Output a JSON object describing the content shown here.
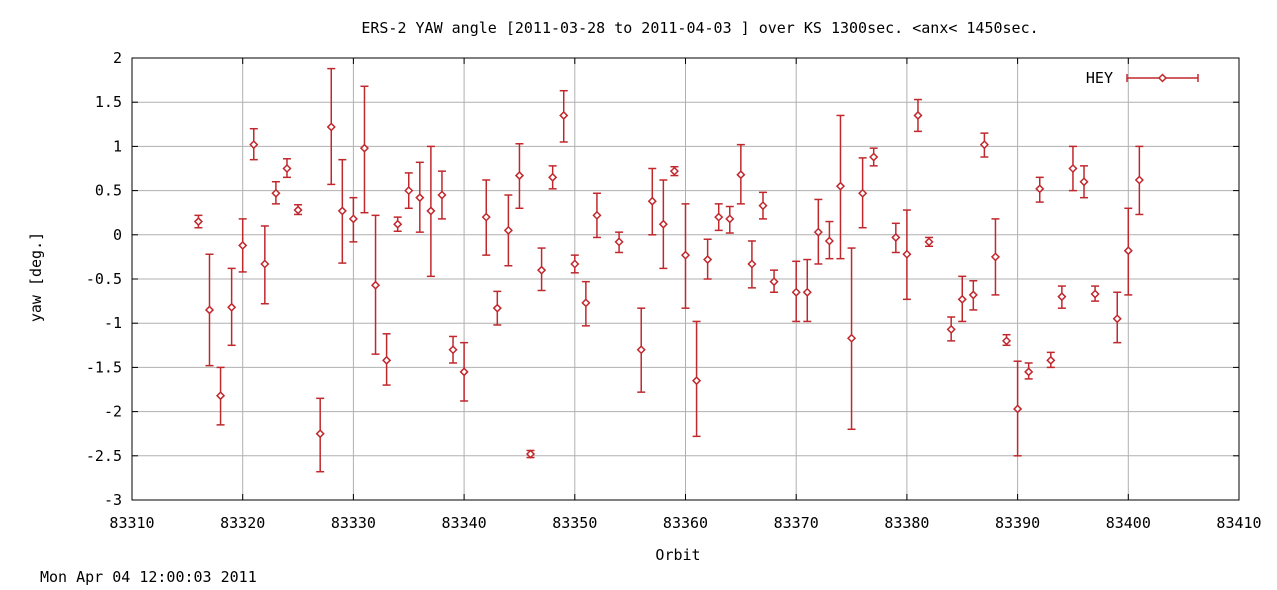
{
  "chart_data": {
    "type": "scatter",
    "title": "ERS-2 YAW angle [2011-03-28 to 2011-04-03 ] over KS 1300sec. <anx< 1450sec.",
    "xlabel": "Orbit",
    "ylabel": "yaw [deg.]",
    "xlim": [
      83310,
      83410
    ],
    "ylim": [
      -3,
      2
    ],
    "x_ticks": [
      83310,
      83320,
      83330,
      83340,
      83350,
      83360,
      83370,
      83380,
      83390,
      83400,
      83410
    ],
    "y_ticks": [
      -3,
      -2.5,
      -2,
      -1.5,
      -1,
      -0.5,
      0,
      0.5,
      1,
      1.5,
      2
    ],
    "x_tick_labels": [
      "83310",
      "83320",
      "83330",
      "83340",
      "83350",
      "83360",
      "83370",
      "83380",
      "83390",
      "83400",
      "83410"
    ],
    "y_tick_labels": [
      "-3",
      "-2.5",
      "-2",
      "-1.5",
      "-1",
      "-0.5",
      "0",
      "0.5",
      "1",
      "1.5",
      "2"
    ],
    "grid": true,
    "legend_position": "top-right",
    "series": [
      {
        "name": "HEY",
        "color": "#c0282d",
        "style": "points-with-errorbars",
        "points": [
          {
            "x": 83316,
            "y": 0.15,
            "ylow": 0.08,
            "yhigh": 0.22
          },
          {
            "x": 83317,
            "y": -0.85,
            "ylow": -1.48,
            "yhigh": -0.22
          },
          {
            "x": 83318,
            "y": -1.82,
            "ylow": -2.15,
            "yhigh": -1.5
          },
          {
            "x": 83319,
            "y": -0.82,
            "ylow": -1.25,
            "yhigh": -0.38
          },
          {
            "x": 83320,
            "y": -0.12,
            "ylow": -0.42,
            "yhigh": 0.18
          },
          {
            "x": 83321,
            "y": 1.02,
            "ylow": 0.85,
            "yhigh": 1.2
          },
          {
            "x": 83322,
            "y": -0.33,
            "ylow": -0.78,
            "yhigh": 0.1
          },
          {
            "x": 83323,
            "y": 0.47,
            "ylow": 0.35,
            "yhigh": 0.6
          },
          {
            "x": 83324,
            "y": 0.75,
            "ylow": 0.65,
            "yhigh": 0.86
          },
          {
            "x": 83325,
            "y": 0.28,
            "ylow": 0.23,
            "yhigh": 0.34
          },
          {
            "x": 83327,
            "y": -2.25,
            "ylow": -2.68,
            "yhigh": -1.85
          },
          {
            "x": 83328,
            "y": 1.22,
            "ylow": 0.57,
            "yhigh": 1.88
          },
          {
            "x": 83329,
            "y": 0.27,
            "ylow": -0.32,
            "yhigh": 0.85
          },
          {
            "x": 83330,
            "y": 0.18,
            "ylow": -0.08,
            "yhigh": 0.42
          },
          {
            "x": 83331,
            "y": 0.98,
            "ylow": 0.25,
            "yhigh": 1.68
          },
          {
            "x": 83332,
            "y": -0.57,
            "ylow": -1.35,
            "yhigh": 0.22
          },
          {
            "x": 83333,
            "y": -1.42,
            "ylow": -1.7,
            "yhigh": -1.12
          },
          {
            "x": 83334,
            "y": 0.12,
            "ylow": 0.04,
            "yhigh": 0.2
          },
          {
            "x": 83335,
            "y": 0.5,
            "ylow": 0.3,
            "yhigh": 0.7
          },
          {
            "x": 83336,
            "y": 0.42,
            "ylow": 0.03,
            "yhigh": 0.82
          },
          {
            "x": 83337,
            "y": 0.27,
            "ylow": -0.47,
            "yhigh": 1.0
          },
          {
            "x": 83338,
            "y": 0.45,
            "ylow": 0.18,
            "yhigh": 0.72
          },
          {
            "x": 83339,
            "y": -1.3,
            "ylow": -1.45,
            "yhigh": -1.15
          },
          {
            "x": 83340,
            "y": -1.55,
            "ylow": -1.88,
            "yhigh": -1.22
          },
          {
            "x": 83342,
            "y": 0.2,
            "ylow": -0.23,
            "yhigh": 0.62
          },
          {
            "x": 83343,
            "y": -0.83,
            "ylow": -1.02,
            "yhigh": -0.64
          },
          {
            "x": 83344,
            "y": 0.05,
            "ylow": -0.35,
            "yhigh": 0.45
          },
          {
            "x": 83345,
            "y": 0.67,
            "ylow": 0.3,
            "yhigh": 1.03
          },
          {
            "x": 83346,
            "y": -2.48,
            "ylow": -2.52,
            "yhigh": -2.44
          },
          {
            "x": 83347,
            "y": -0.4,
            "ylow": -0.63,
            "yhigh": -0.15
          },
          {
            "x": 83348,
            "y": 0.65,
            "ylow": 0.52,
            "yhigh": 0.78
          },
          {
            "x": 83349,
            "y": 1.35,
            "ylow": 1.05,
            "yhigh": 1.63
          },
          {
            "x": 83350,
            "y": -0.33,
            "ylow": -0.43,
            "yhigh": -0.23
          },
          {
            "x": 83351,
            "y": -0.77,
            "ylow": -1.03,
            "yhigh": -0.53
          },
          {
            "x": 83352,
            "y": 0.22,
            "ylow": -0.03,
            "yhigh": 0.47
          },
          {
            "x": 83354,
            "y": -0.08,
            "ylow": -0.2,
            "yhigh": 0.03
          },
          {
            "x": 83356,
            "y": -1.3,
            "ylow": -1.78,
            "yhigh": -0.83
          },
          {
            "x": 83357,
            "y": 0.38,
            "ylow": 0.0,
            "yhigh": 0.75
          },
          {
            "x": 83358,
            "y": 0.12,
            "ylow": -0.38,
            "yhigh": 0.62
          },
          {
            "x": 83359,
            "y": 0.72,
            "ylow": 0.67,
            "yhigh": 0.77
          },
          {
            "x": 83360,
            "y": -0.23,
            "ylow": -0.83,
            "yhigh": 0.35
          },
          {
            "x": 83361,
            "y": -1.65,
            "ylow": -2.28,
            "yhigh": -0.98
          },
          {
            "x": 83362,
            "y": -0.28,
            "ylow": -0.5,
            "yhigh": -0.05
          },
          {
            "x": 83363,
            "y": 0.2,
            "ylow": 0.05,
            "yhigh": 0.35
          },
          {
            "x": 83364,
            "y": 0.18,
            "ylow": 0.02,
            "yhigh": 0.32
          },
          {
            "x": 83365,
            "y": 0.68,
            "ylow": 0.35,
            "yhigh": 1.02
          },
          {
            "x": 83366,
            "y": -0.33,
            "ylow": -0.6,
            "yhigh": -0.07
          },
          {
            "x": 83367,
            "y": 0.33,
            "ylow": 0.18,
            "yhigh": 0.48
          },
          {
            "x": 83368,
            "y": -0.53,
            "ylow": -0.65,
            "yhigh": -0.4
          },
          {
            "x": 83370,
            "y": -0.65,
            "ylow": -0.98,
            "yhigh": -0.3
          },
          {
            "x": 83371,
            "y": -0.65,
            "ylow": -0.98,
            "yhigh": -0.28
          },
          {
            "x": 83372,
            "y": 0.03,
            "ylow": -0.33,
            "yhigh": 0.4
          },
          {
            "x": 83373,
            "y": -0.07,
            "ylow": -0.27,
            "yhigh": 0.15
          },
          {
            "x": 83374,
            "y": 0.55,
            "ylow": -0.27,
            "yhigh": 1.35
          },
          {
            "x": 83375,
            "y": -1.17,
            "ylow": -2.2,
            "yhigh": -0.15
          },
          {
            "x": 83376,
            "y": 0.47,
            "ylow": 0.08,
            "yhigh": 0.87
          },
          {
            "x": 83377,
            "y": 0.88,
            "ylow": 0.78,
            "yhigh": 0.98
          },
          {
            "x": 83379,
            "y": -0.03,
            "ylow": -0.2,
            "yhigh": 0.13
          },
          {
            "x": 83380,
            "y": -0.22,
            "ylow": -0.73,
            "yhigh": 0.28
          },
          {
            "x": 83381,
            "y": 1.35,
            "ylow": 1.17,
            "yhigh": 1.53
          },
          {
            "x": 83382,
            "y": -0.08,
            "ylow": -0.13,
            "yhigh": -0.03
          },
          {
            "x": 83384,
            "y": -1.07,
            "ylow": -1.2,
            "yhigh": -0.93
          },
          {
            "x": 83385,
            "y": -0.73,
            "ylow": -0.98,
            "yhigh": -0.47
          },
          {
            "x": 83386,
            "y": -0.68,
            "ylow": -0.85,
            "yhigh": -0.52
          },
          {
            "x": 83387,
            "y": 1.02,
            "ylow": 0.88,
            "yhigh": 1.15
          },
          {
            "x": 83388,
            "y": -0.25,
            "ylow": -0.68,
            "yhigh": 0.18
          },
          {
            "x": 83389,
            "y": -1.2,
            "ylow": -1.25,
            "yhigh": -1.13
          },
          {
            "x": 83390,
            "y": -1.97,
            "ylow": -2.5,
            "yhigh": -1.43
          },
          {
            "x": 83391,
            "y": -1.55,
            "ylow": -1.63,
            "yhigh": -1.45
          },
          {
            "x": 83392,
            "y": 0.52,
            "ylow": 0.37,
            "yhigh": 0.65
          },
          {
            "x": 83393,
            "y": -1.42,
            "ylow": -1.5,
            "yhigh": -1.33
          },
          {
            "x": 83394,
            "y": -0.7,
            "ylow": -0.83,
            "yhigh": -0.58
          },
          {
            "x": 83395,
            "y": 0.75,
            "ylow": 0.5,
            "yhigh": 1.0
          },
          {
            "x": 83396,
            "y": 0.6,
            "ylow": 0.42,
            "yhigh": 0.78
          },
          {
            "x": 83397,
            "y": -0.67,
            "ylow": -0.75,
            "yhigh": -0.58
          },
          {
            "x": 83399,
            "y": -0.95,
            "ylow": -1.22,
            "yhigh": -0.65
          },
          {
            "x": 83400,
            "y": -0.18,
            "ylow": -0.68,
            "yhigh": 0.3
          },
          {
            "x": 83401,
            "y": 0.62,
            "ylow": 0.23,
            "yhigh": 1.0
          }
        ]
      }
    ]
  },
  "footer": {
    "timestamp": "Mon Apr 04 12:00:03 2011"
  }
}
